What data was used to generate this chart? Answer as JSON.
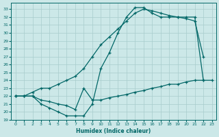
{
  "xlabel": "Humidex (Indice chaleur)",
  "ylabel": "",
  "xlim": [
    -0.5,
    23.5
  ],
  "ylim": [
    19,
    33.8
  ],
  "yticks": [
    19,
    20,
    21,
    22,
    23,
    24,
    25,
    26,
    27,
    28,
    29,
    30,
    31,
    32,
    33
  ],
  "xticks": [
    0,
    1,
    2,
    3,
    4,
    5,
    6,
    7,
    8,
    9,
    10,
    11,
    12,
    13,
    14,
    15,
    16,
    17,
    18,
    19,
    20,
    21,
    22,
    23
  ],
  "bg_color": "#cce8e8",
  "line_color": "#006666",
  "grid_color": "#a8cccc",
  "curve1_x": [
    0,
    1,
    2,
    3,
    4,
    5,
    6,
    7,
    8,
    9,
    10,
    11,
    12,
    13,
    14,
    15,
    16,
    17,
    18,
    19,
    20,
    21,
    22
  ],
  "curve1_y": [
    22.0,
    22.0,
    22.0,
    21.0,
    20.5,
    20.0,
    19.5,
    19.5,
    19.5,
    21.0,
    25.5,
    27.5,
    30.0,
    32.0,
    33.2,
    33.2,
    32.5,
    32.0,
    32.0,
    32.0,
    31.8,
    31.5,
    27.0
  ],
  "curve2_x": [
    0,
    1,
    2,
    3,
    4,
    5,
    6,
    7,
    8,
    9,
    10,
    11,
    12,
    13,
    14,
    15,
    16,
    17,
    18,
    19,
    20,
    21,
    22,
    23
  ],
  "curve2_y": [
    22.0,
    22.0,
    22.0,
    21.5,
    21.3,
    21.0,
    20.8,
    20.3,
    23.0,
    21.5,
    21.5,
    21.8,
    22.0,
    22.2,
    22.5,
    22.7,
    23.0,
    23.2,
    23.5,
    23.5,
    23.8,
    24.0,
    24.0,
    24.0
  ],
  "curve3_x": [
    0,
    1,
    2,
    3,
    4,
    5,
    6,
    7,
    8,
    9,
    10,
    11,
    12,
    13,
    14,
    15,
    16,
    17,
    18,
    19,
    20,
    21,
    22
  ],
  "curve3_y": [
    22.0,
    22.0,
    22.5,
    23.0,
    23.0,
    23.5,
    24.0,
    24.5,
    25.5,
    27.0,
    28.5,
    29.5,
    30.5,
    31.5,
    32.5,
    33.0,
    32.8,
    32.5,
    32.2,
    32.0,
    32.0,
    32.0,
    24.0
  ]
}
